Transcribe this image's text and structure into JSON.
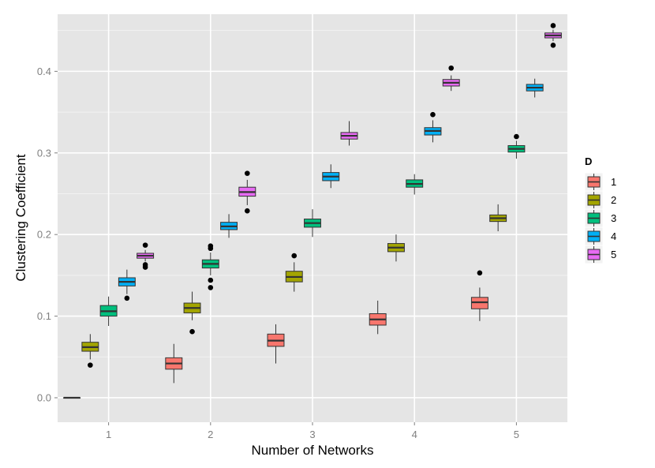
{
  "chart_data": {
    "type": "box",
    "title": "",
    "xlabel": "Number of Networks",
    "ylabel": "Clustering Coefficient",
    "categories": [
      "1",
      "2",
      "3",
      "4",
      "5"
    ],
    "ylim": [
      -0.03,
      0.47
    ],
    "yticks": [
      0.0,
      0.1,
      0.2,
      0.3,
      0.4
    ],
    "ytick_labels": [
      "0.0",
      "0.1",
      "0.2",
      "0.3",
      "0.4"
    ],
    "grid": true,
    "legend": {
      "title": "D",
      "position": "right",
      "entries": [
        "1",
        "2",
        "3",
        "4",
        "5"
      ]
    },
    "colors": {
      "1": "#F8766D",
      "2": "#A3A500",
      "3": "#00BF7D",
      "4": "#00B0F6",
      "5": "#E76BF3",
      "panel": "#E5E5E5",
      "grid_major": "#FFFFFF",
      "grid_minor": "#F2F2F2",
      "box_outline": "#333333",
      "outlier": "#000000"
    },
    "series": [
      {
        "name": "1",
        "boxes": [
          {
            "category": "1",
            "min": 0.0,
            "q1": 0.0,
            "median": 0.0,
            "q3": 0.0,
            "max": 0.0,
            "outliers": []
          },
          {
            "category": "2",
            "min": 0.018,
            "q1": 0.035,
            "median": 0.042,
            "q3": 0.049,
            "max": 0.066,
            "outliers": []
          },
          {
            "category": "3",
            "min": 0.042,
            "q1": 0.063,
            "median": 0.07,
            "q3": 0.078,
            "max": 0.09,
            "outliers": []
          },
          {
            "category": "4",
            "min": 0.078,
            "q1": 0.089,
            "median": 0.096,
            "q3": 0.103,
            "max": 0.119,
            "outliers": []
          },
          {
            "category": "5",
            "min": 0.094,
            "q1": 0.109,
            "median": 0.117,
            "q3": 0.123,
            "max": 0.135,
            "outliers": [
              0.153
            ]
          }
        ]
      },
      {
        "name": "2",
        "boxes": [
          {
            "category": "1",
            "min": 0.047,
            "q1": 0.057,
            "median": 0.062,
            "q3": 0.068,
            "max": 0.078,
            "outliers": [
              0.04
            ]
          },
          {
            "category": "2",
            "min": 0.095,
            "q1": 0.104,
            "median": 0.11,
            "q3": 0.116,
            "max": 0.13,
            "outliers": [
              0.081
            ]
          },
          {
            "category": "3",
            "min": 0.13,
            "q1": 0.142,
            "median": 0.148,
            "q3": 0.155,
            "max": 0.166,
            "outliers": [
              0.174
            ]
          },
          {
            "category": "4",
            "min": 0.167,
            "q1": 0.179,
            "median": 0.184,
            "q3": 0.189,
            "max": 0.2,
            "outliers": []
          },
          {
            "category": "5",
            "min": 0.204,
            "q1": 0.216,
            "median": 0.22,
            "q3": 0.224,
            "max": 0.237,
            "outliers": []
          }
        ]
      },
      {
        "name": "3",
        "boxes": [
          {
            "category": "1",
            "min": 0.088,
            "q1": 0.1,
            "median": 0.106,
            "q3": 0.113,
            "max": 0.124,
            "outliers": []
          },
          {
            "category": "2",
            "min": 0.15,
            "q1": 0.159,
            "median": 0.164,
            "q3": 0.169,
            "max": 0.178,
            "outliers": [
              0.186,
              0.183,
              0.144,
              0.135
            ]
          },
          {
            "category": "3",
            "min": 0.197,
            "q1": 0.209,
            "median": 0.214,
            "q3": 0.219,
            "max": 0.231,
            "outliers": []
          },
          {
            "category": "4",
            "min": 0.249,
            "q1": 0.258,
            "median": 0.262,
            "q3": 0.267,
            "max": 0.274,
            "outliers": []
          },
          {
            "category": "5",
            "min": 0.293,
            "q1": 0.301,
            "median": 0.305,
            "q3": 0.309,
            "max": 0.315,
            "outliers": [
              0.32
            ]
          }
        ]
      },
      {
        "name": "4",
        "boxes": [
          {
            "category": "1",
            "min": 0.127,
            "q1": 0.137,
            "median": 0.142,
            "q3": 0.147,
            "max": 0.157,
            "outliers": [
              0.122
            ]
          },
          {
            "category": "2",
            "min": 0.196,
            "q1": 0.206,
            "median": 0.21,
            "q3": 0.215,
            "max": 0.225,
            "outliers": []
          },
          {
            "category": "3",
            "min": 0.257,
            "q1": 0.266,
            "median": 0.271,
            "q3": 0.276,
            "max": 0.286,
            "outliers": []
          },
          {
            "category": "4",
            "min": 0.313,
            "q1": 0.322,
            "median": 0.327,
            "q3": 0.331,
            "max": 0.34,
            "outliers": [
              0.347
            ]
          },
          {
            "category": "5",
            "min": 0.368,
            "q1": 0.376,
            "median": 0.38,
            "q3": 0.384,
            "max": 0.391,
            "outliers": []
          }
        ]
      },
      {
        "name": "5",
        "boxes": [
          {
            "category": "1",
            "min": 0.167,
            "q1": 0.171,
            "median": 0.174,
            "q3": 0.177,
            "max": 0.181,
            "outliers": [
              0.187,
              0.163,
              0.16
            ]
          },
          {
            "category": "2",
            "min": 0.236,
            "q1": 0.247,
            "median": 0.252,
            "q3": 0.258,
            "max": 0.267,
            "outliers": [
              0.275,
              0.229
            ]
          },
          {
            "category": "3",
            "min": 0.309,
            "q1": 0.317,
            "median": 0.321,
            "q3": 0.325,
            "max": 0.339,
            "outliers": []
          },
          {
            "category": "4",
            "min": 0.376,
            "q1": 0.382,
            "median": 0.386,
            "q3": 0.39,
            "max": 0.395,
            "outliers": [
              0.404
            ]
          },
          {
            "category": "5",
            "min": 0.437,
            "q1": 0.441,
            "median": 0.444,
            "q3": 0.447,
            "max": 0.451,
            "outliers": [
              0.456,
              0.432
            ]
          }
        ]
      }
    ]
  }
}
